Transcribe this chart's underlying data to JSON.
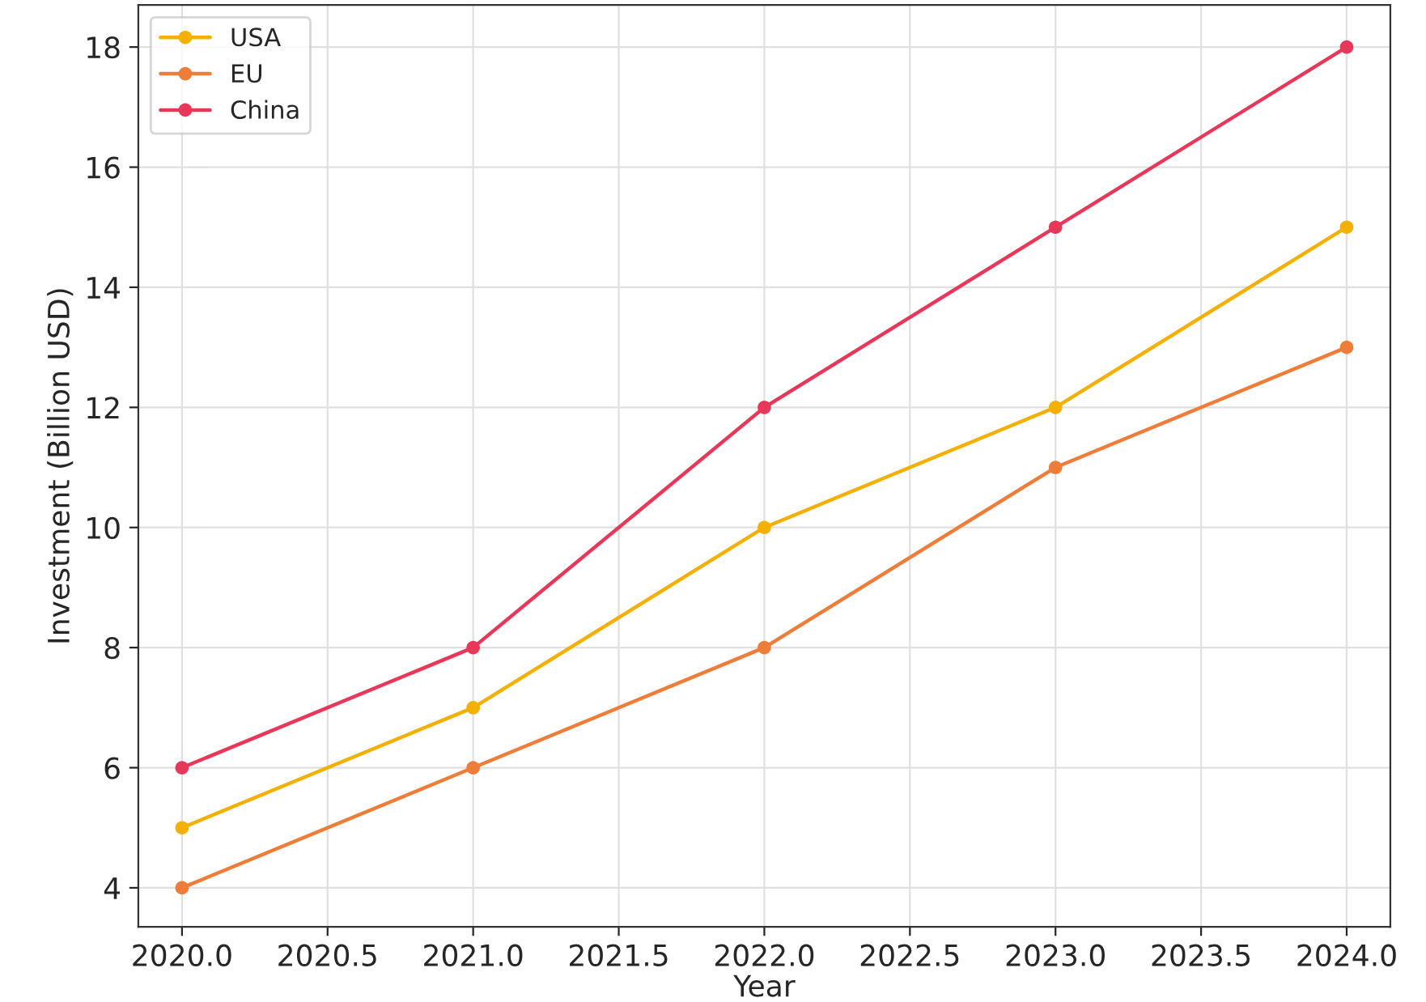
{
  "chart_data": {
    "type": "line",
    "xlabel": "Year",
    "ylabel": "Investment (Billion USD)",
    "x": [
      2020,
      2021,
      2022,
      2023,
      2024
    ],
    "series": [
      {
        "name": "USA",
        "color": "#f4b000",
        "values": [
          5,
          7,
          10,
          12,
          15
        ]
      },
      {
        "name": "EU",
        "color": "#ee7d3a",
        "values": [
          4,
          6,
          8,
          11,
          13
        ]
      },
      {
        "name": "China",
        "color": "#e8385a",
        "values": [
          6,
          8,
          12,
          15,
          18
        ]
      }
    ],
    "xlim": [
      2019.85,
      2024.15
    ],
    "ylim": [
      3.35,
      18.7
    ],
    "xticks": [
      {
        "value": 2020,
        "label": "2020.0"
      },
      {
        "value": 2020.5,
        "label": "2020.5"
      },
      {
        "value": 2021,
        "label": "2021.0"
      },
      {
        "value": 2021.5,
        "label": "2021.5"
      },
      {
        "value": 2022,
        "label": "2022.0"
      },
      {
        "value": 2022.5,
        "label": "2022.5"
      },
      {
        "value": 2023,
        "label": "2023.0"
      },
      {
        "value": 2023.5,
        "label": "2023.5"
      },
      {
        "value": 2024,
        "label": "2024.0"
      }
    ],
    "yticks": [
      4,
      6,
      8,
      10,
      12,
      14,
      16,
      18
    ],
    "grid": true,
    "legend": "top left",
    "marker": "circle",
    "line_style": "solid"
  }
}
